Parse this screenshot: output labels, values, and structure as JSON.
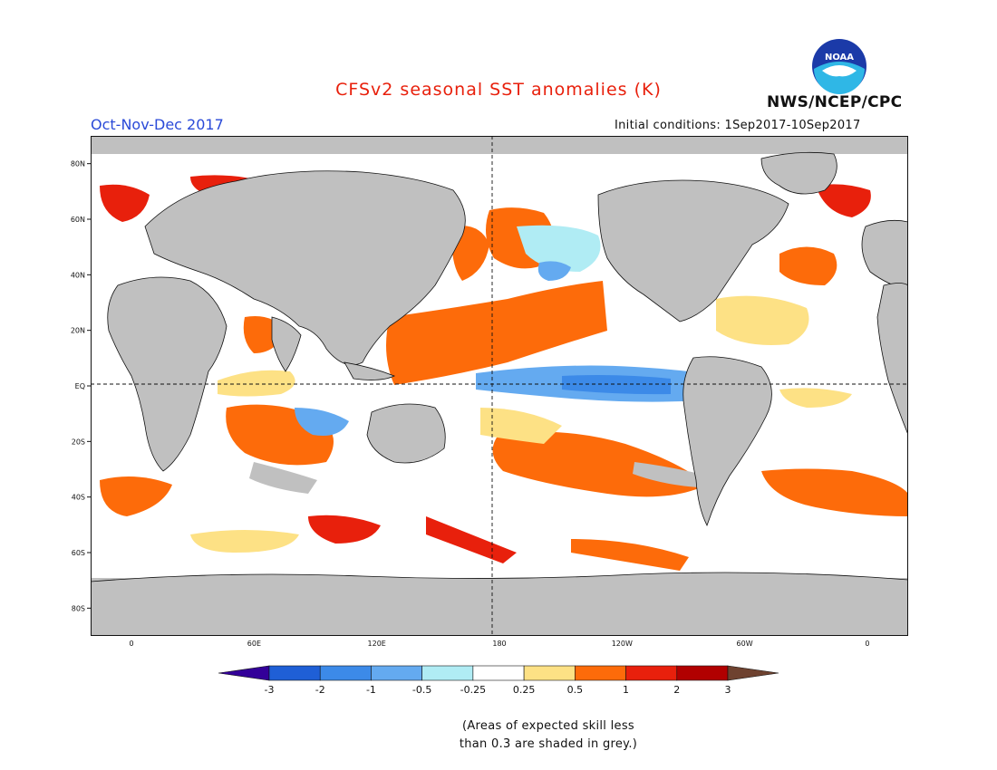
{
  "header": {
    "title": "CFSv2 seasonal SST anomalies (K)",
    "period": "Oct-Nov-Dec 2017",
    "initial_conditions": "Initial conditions: 1Sep2017-10Sep2017",
    "agency": "NWS/NCEP/CPC",
    "logo_text": "NOAA"
  },
  "map": {
    "projection": "cylindrical equidistant",
    "lon_range": [
      -20,
      380
    ],
    "lat_range": [
      -90,
      90
    ],
    "lat_labels": [
      "80N",
      "60N",
      "40N",
      "20N",
      "EQ",
      "20S",
      "40S",
      "60S",
      "80S"
    ],
    "lon_labels": [
      "0",
      "60E",
      "120E",
      "180",
      "120W",
      "60W",
      "0"
    ],
    "reference_lines": [
      "EQ",
      "180"
    ],
    "colors": {
      "land": "#c0c0c0",
      "low_skill": "#c0c0c0",
      "neutral": "#ffffff"
    }
  },
  "colorbar": {
    "ticks": [
      "-3",
      "-2",
      "-1",
      "-0.5",
      "-0.25",
      "0.25",
      "0.5",
      "1",
      "2",
      "3"
    ],
    "colors": [
      "#330099",
      "#1f5fd6",
      "#3c8ae8",
      "#64aaf0",
      "#b0ecf4",
      "#ffffff",
      "#fde185",
      "#fd6b0a",
      "#e8200c",
      "#b10000",
      "#6e4230"
    ]
  },
  "footnote": {
    "line1": "(Areas of expected skill less",
    "line2": "than 0.3 are shaded in grey.)"
  }
}
